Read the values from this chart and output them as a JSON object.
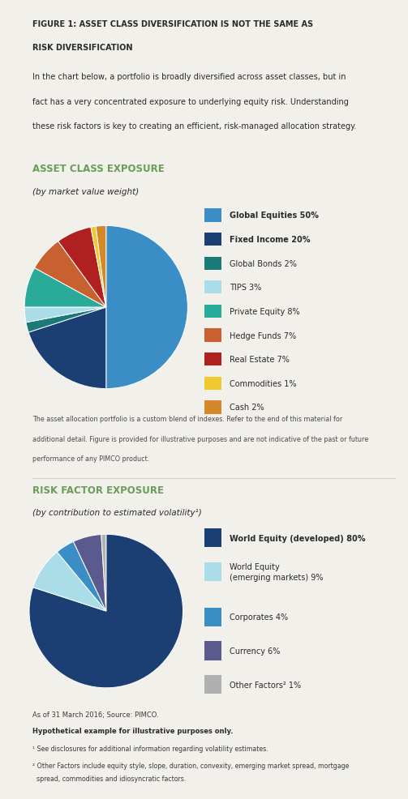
{
  "bg_color": "#f2f0eb",
  "title_line1": "FIGURE 1: ASSET CLASS DIVERSIFICATION IS NOT THE SAME AS",
  "title_line2": "RISK DIVERSIFICATION",
  "intro_text_lines": [
    "In the chart below, a portfolio is broadly diversified across asset classes, but in",
    "fact has a very concentrated exposure to underlying equity risk. Understanding",
    "these risk factors is key to creating an efficient, risk-managed allocation strategy."
  ],
  "chart1_title": "ASSET CLASS EXPOSURE",
  "chart1_subtitle": "(by market value weight)",
  "pie1_values": [
    50,
    20,
    2,
    3,
    8,
    7,
    7,
    1,
    2
  ],
  "pie1_colors": [
    "#3a8ec5",
    "#1b3f72",
    "#1a7a7a",
    "#aadde8",
    "#2aab9a",
    "#c96030",
    "#b02020",
    "#f0c830",
    "#d4882a"
  ],
  "pie1_note_lines": [
    "The asset allocation portfolio is a custom blend of indexes. Refer to the end of this material for",
    "additional detail. Figure is provided for illustrative purposes and are not indicative of the past or future",
    "performance of any PIMCO product."
  ],
  "chart2_title": "RISK FACTOR EXPOSURE",
  "chart2_subtitle": "(by contribution to estimated volatility¹)",
  "pie2_values": [
    80,
    9,
    4,
    6,
    1
  ],
  "pie2_colors": [
    "#1b3f72",
    "#aadde8",
    "#3a8ec5",
    "#5a5a8e",
    "#b0b0b0"
  ],
  "footer_lines": [
    "As of 31 March 2016; Source: PIMCO.",
    "Hypothetical example for illustrative purposes only.",
    "¹ See disclosures for additional information regarding volatility estimates.",
    "² Other Factors include equity style, slope, duration, convexity, emerging market spread, mortgage",
    "  spread, commodities and idiosyncratic factors."
  ],
  "footer_bold": [
    false,
    true,
    false,
    false,
    false
  ],
  "legend1_colors": [
    "#3a8ec5",
    "#1b3f72",
    "#1a7a7a",
    "#aadde8",
    "#2aab9a",
    "#c96030",
    "#b02020",
    "#f0c830",
    "#d4882a"
  ],
  "legend1_labels": [
    "Global Equities 50%",
    "Fixed Income 20%",
    "Global Bonds 2%",
    "TIPS 3%",
    "Private Equity 8%",
    "Hedge Funds 7%",
    "Real Estate 7%",
    "Commodities 1%",
    "Cash 2%"
  ],
  "legend1_bold": [
    true,
    true,
    false,
    false,
    false,
    false,
    false,
    false,
    false
  ],
  "legend2_colors": [
    "#1b3f72",
    "#aadde8",
    "#3a8ec5",
    "#5a5a8e",
    "#b0b0b0"
  ],
  "legend2_labels": [
    "World Equity (developed) 80%",
    "World Equity\n(emerging markets) 9%",
    "Corporates 4%",
    "Currency 6%",
    "Other Factors² 1%"
  ],
  "legend2_bold": [
    true,
    false,
    false,
    false,
    false
  ]
}
